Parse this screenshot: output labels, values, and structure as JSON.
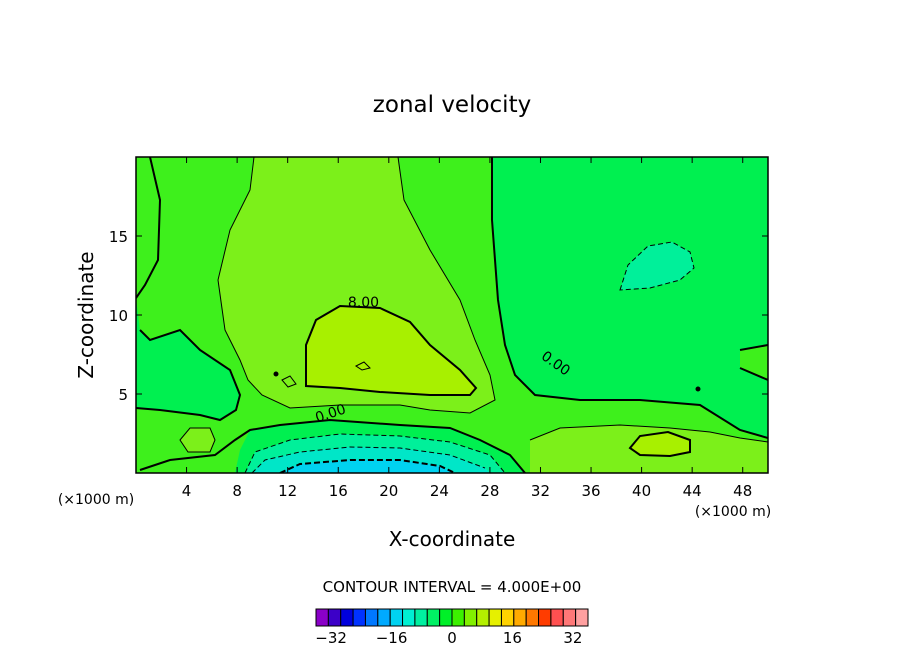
{
  "chart_data": {
    "type": "heatmap",
    "title": "zonal velocity",
    "xlabel": "X-coordinate",
    "ylabel": "Z-coordinate",
    "x_unit_left": "(×1000 m)",
    "x_unit_right": "(×1000 m)",
    "xlim": [
      0,
      50
    ],
    "ylim": [
      0,
      20
    ],
    "x_ticks": [
      4,
      8,
      12,
      16,
      20,
      24,
      28,
      32,
      36,
      40,
      44,
      48
    ],
    "y_ticks": [
      5,
      10,
      15
    ],
    "contour_interval_text": "CONTOUR INTERVAL = 4.000E+00",
    "contour_labels": [
      {
        "text": "8.00",
        "x": 18,
        "z": 10.5
      },
      {
        "text": "0.00",
        "x": 33,
        "z": 6.7
      },
      {
        "text": "0.00",
        "x": 15.5,
        "z": 3.5
      }
    ],
    "colorbar": {
      "min": -36,
      "max": 36,
      "step": 4,
      "tick_values": [
        -32,
        -16,
        0,
        16,
        32
      ],
      "tick_labels": [
        "−32",
        "−16",
        "0",
        "16",
        "32"
      ],
      "colors": [
        "#8a00c8",
        "#3c00c8",
        "#0000dc",
        "#0032ff",
        "#0078ff",
        "#00aaff",
        "#00d2f0",
        "#00f0d2",
        "#00f0a0",
        "#00f064",
        "#00f028",
        "#3cf000",
        "#82f000",
        "#b4f000",
        "#e6f000",
        "#ffd200",
        "#ffaa00",
        "#ff7800",
        "#ff3c00",
        "#ff5050",
        "#ff7878",
        "#ffa0a0"
      ]
    },
    "fill_colors": {
      "band_0_4": "#3ef01c",
      "band_4_8": "#7cf01a",
      "band_8_12": "#a8f000",
      "band_neg4_0": "#00f050",
      "band_neg8_neg4": "#00f09a",
      "band_neg12_neg8": "#00e6c8",
      "band_neg16_neg12": "#00d2f0"
    }
  }
}
